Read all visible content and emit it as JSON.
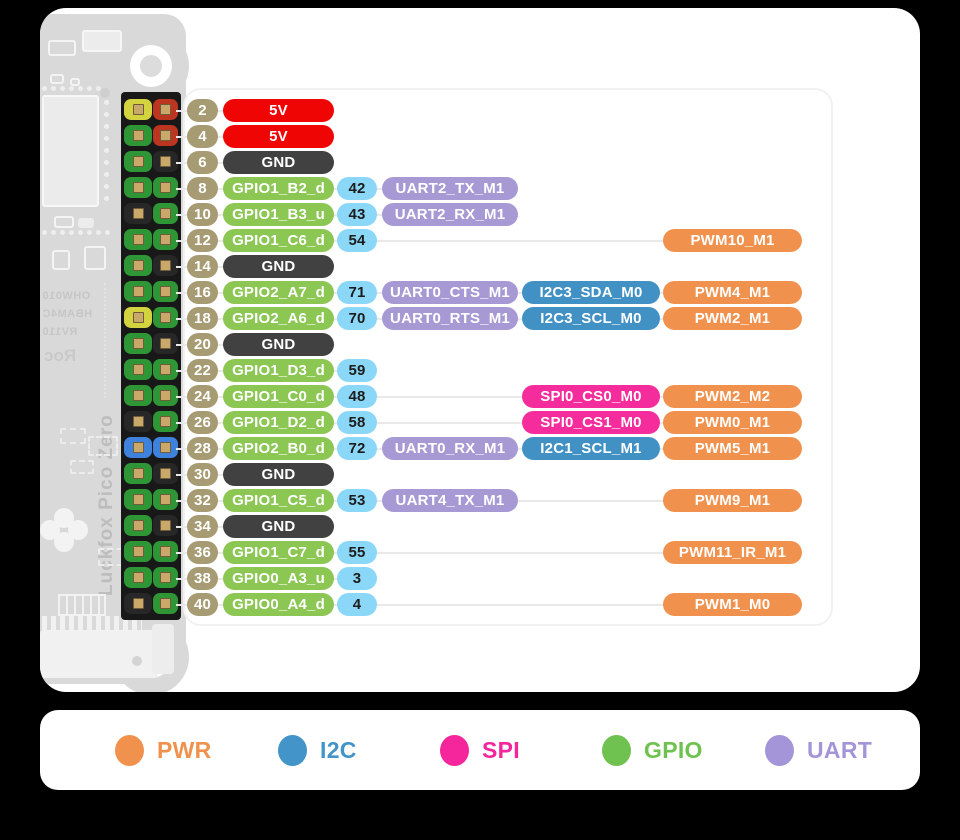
{
  "colors": {
    "pwr_orange": "#F0924E",
    "i2c_blue": "#4191C4",
    "spi_pink": "#F42C9C",
    "gpio_green": "#8CC653",
    "uart_purple": "#A79AD4",
    "v5_red": "#F00505",
    "gnd_dark": "#414141",
    "pin_tan": "#A69B73",
    "num_blue": "#8BD7F8"
  },
  "pinout": {
    "rows": [
      {
        "pin": "2",
        "name": "5V",
        "name_type": "pwr",
        "gpio_num": null,
        "functions": []
      },
      {
        "pin": "4",
        "name": "5V",
        "name_type": "pwr",
        "gpio_num": null,
        "functions": []
      },
      {
        "pin": "6",
        "name": "GND",
        "name_type": "gnd",
        "gpio_num": null,
        "functions": []
      },
      {
        "pin": "8",
        "name": "GPIO1_B2_d",
        "name_type": "gpio",
        "gpio_num": "42",
        "functions": [
          {
            "col": 1,
            "label": "UART2_TX_M1",
            "type": "uart"
          }
        ]
      },
      {
        "pin": "10",
        "name": "GPIO1_B3_u",
        "name_type": "gpio",
        "gpio_num": "43",
        "functions": [
          {
            "col": 1,
            "label": "UART2_RX_M1",
            "type": "uart"
          }
        ]
      },
      {
        "pin": "12",
        "name": "GPIO1_C6_d",
        "name_type": "gpio",
        "gpio_num": "54",
        "functions": [
          {
            "col": 3,
            "label": "PWM10_M1",
            "type": "pwm"
          }
        ]
      },
      {
        "pin": "14",
        "name": "GND",
        "name_type": "gnd",
        "gpio_num": null,
        "functions": []
      },
      {
        "pin": "16",
        "name": "GPIO2_A7_d",
        "name_type": "gpio",
        "gpio_num": "71",
        "functions": [
          {
            "col": 1,
            "label": "UART0_CTS_M1",
            "type": "uart"
          },
          {
            "col": 2,
            "label": "I2C3_SDA_M0",
            "type": "i2c"
          },
          {
            "col": 3,
            "label": "PWM4_M1",
            "type": "pwm"
          }
        ]
      },
      {
        "pin": "18",
        "name": "GPIO2_A6_d",
        "name_type": "gpio",
        "gpio_num": "70",
        "functions": [
          {
            "col": 1,
            "label": "UART0_RTS_M1",
            "type": "uart"
          },
          {
            "col": 2,
            "label": "I2C3_SCL_M0",
            "type": "i2c"
          },
          {
            "col": 3,
            "label": "PWM2_M1",
            "type": "pwm"
          }
        ]
      },
      {
        "pin": "20",
        "name": "GND",
        "name_type": "gnd",
        "gpio_num": null,
        "functions": []
      },
      {
        "pin": "22",
        "name": "GPIO1_D3_d",
        "name_type": "gpio",
        "gpio_num": "59",
        "functions": []
      },
      {
        "pin": "24",
        "name": "GPIO1_C0_d",
        "name_type": "gpio",
        "gpio_num": "48",
        "functions": [
          {
            "col": 2,
            "label": "SPI0_CS0_M0",
            "type": "spi"
          },
          {
            "col": 3,
            "label": "PWM2_M2",
            "type": "pwm"
          }
        ]
      },
      {
        "pin": "26",
        "name": "GPIO1_D2_d",
        "name_type": "gpio",
        "gpio_num": "58",
        "functions": [
          {
            "col": 2,
            "label": "SPI0_CS1_M0",
            "type": "spi"
          },
          {
            "col": 3,
            "label": "PWM0_M1",
            "type": "pwm"
          }
        ]
      },
      {
        "pin": "28",
        "name": "GPIO2_B0_d",
        "name_type": "gpio",
        "gpio_num": "72",
        "functions": [
          {
            "col": 1,
            "label": "UART0_RX_M1",
            "type": "uart"
          },
          {
            "col": 2,
            "label": "I2C1_SCL_M1",
            "type": "i2c"
          },
          {
            "col": 3,
            "label": "PWM5_M1",
            "type": "pwm"
          }
        ]
      },
      {
        "pin": "30",
        "name": "GND",
        "name_type": "gnd",
        "gpio_num": null,
        "functions": []
      },
      {
        "pin": "32",
        "name": "GPIO1_C5_d",
        "name_type": "gpio",
        "gpio_num": "53",
        "functions": [
          {
            "col": 1,
            "label": "UART4_TX_M1",
            "type": "uart"
          },
          {
            "col": 3,
            "label": "PWM9_M1",
            "type": "pwm"
          }
        ]
      },
      {
        "pin": "34",
        "name": "GND",
        "name_type": "gnd",
        "gpio_num": null,
        "functions": []
      },
      {
        "pin": "36",
        "name": "GPIO1_C7_d",
        "name_type": "gpio",
        "gpio_num": "55",
        "functions": [
          {
            "col": 3,
            "label": "PWM11_IR_M1",
            "type": "pwm"
          }
        ]
      },
      {
        "pin": "38",
        "name": "GPIO0_A3_u",
        "name_type": "gpio",
        "gpio_num": "3",
        "functions": []
      },
      {
        "pin": "40",
        "name": "GPIO0_A4_d",
        "name_type": "gpio",
        "gpio_num": "4",
        "functions": [
          {
            "col": 3,
            "label": "PWM1_M0",
            "type": "pwm"
          }
        ]
      }
    ]
  },
  "board": {
    "title": "Luckfox Pico Zero",
    "silkscreen": [
      "OHW010",
      "HBAM4C",
      "RV110",
      "Roc",
      "CAN"
    ],
    "pad_colors": {
      "green": "#2F9636",
      "black": "#272727",
      "yellow": "#D3D23F",
      "red": "#BC3520",
      "blue": "#3E82DE"
    },
    "header_rows": [
      [
        "yellow",
        "red"
      ],
      [
        "green",
        "red"
      ],
      [
        "green",
        "black"
      ],
      [
        "green",
        "green"
      ],
      [
        "black",
        "green"
      ],
      [
        "green",
        "green"
      ],
      [
        "green",
        "black"
      ],
      [
        "green",
        "green"
      ],
      [
        "yellow",
        "green"
      ],
      [
        "green",
        "black"
      ],
      [
        "green",
        "green"
      ],
      [
        "green",
        "green"
      ],
      [
        "black",
        "green"
      ],
      [
        "blue",
        "blue"
      ],
      [
        "green",
        "black"
      ],
      [
        "green",
        "green"
      ],
      [
        "green",
        "black"
      ],
      [
        "green",
        "green"
      ],
      [
        "green",
        "green"
      ],
      [
        "black",
        "green"
      ]
    ]
  },
  "legend": {
    "items": [
      {
        "label": "PWR",
        "color": "#F0924E"
      },
      {
        "label": "I2C",
        "color": "#4394C9"
      },
      {
        "label": "SPI",
        "color": "#F5259B"
      },
      {
        "label": "GPIO",
        "color": "#6FC24F"
      },
      {
        "label": "UART",
        "color": "#A495D8"
      }
    ]
  }
}
